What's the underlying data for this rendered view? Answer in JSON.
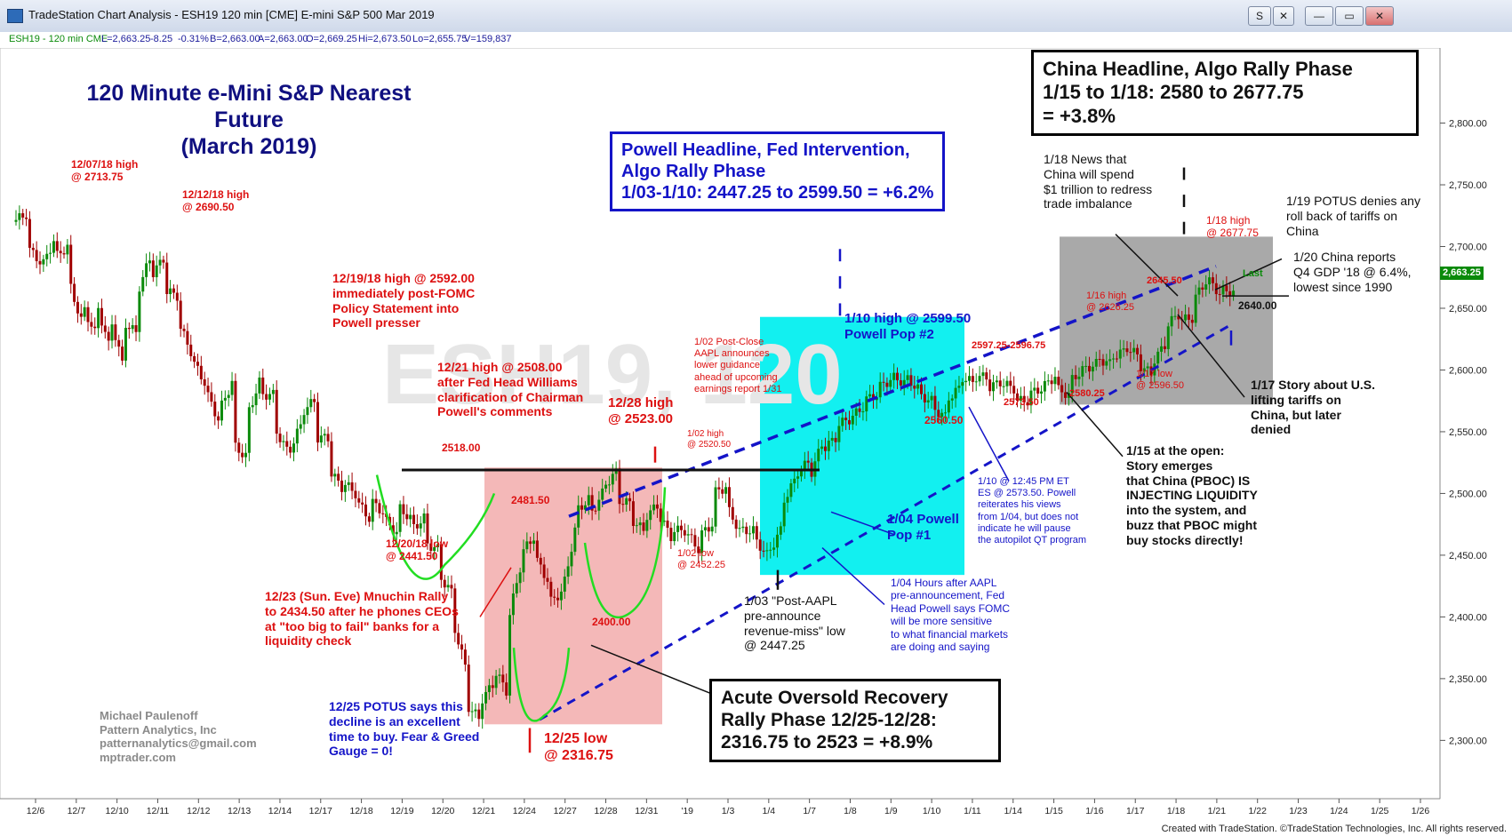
{
  "window": {
    "title": "TradeStation Chart Analysis - ESH19 120 min [CME] E-mini S&P 500 Mar 2019",
    "buttons": {
      "s": "S",
      "close_small": "✕",
      "min": "—",
      "max": "▭",
      "close": "✕"
    }
  },
  "info": {
    "symbol": "ESH19 - 120 min  CME",
    "last": "L=2,663.25",
    "chg": "-8.25",
    "pct": "-0.31%",
    "bid": "B=2,663.00",
    "ask": "A=2,663.00",
    "open": "O=2,669.25",
    "high": "Hi=2,673.50",
    "low": "Lo=2,655.75",
    "vol": "V=159,837"
  },
  "chart_data": {
    "type": "candlestick",
    "title": "120 Minute e-Mini S&P Nearest Future\n(March 2019)",
    "watermark": "ESH19, 120",
    "ylim": [
      2265,
      2845
    ],
    "yticks": [
      "2,800.00",
      "2,750.00",
      "2,700.00",
      "2,650.00",
      "2,600.00",
      "2,550.00",
      "2,500.00",
      "2,450.00",
      "2,400.00",
      "2,350.00",
      "2,300.00"
    ],
    "ytick_values": [
      2800,
      2750,
      2700,
      2650,
      2600,
      2550,
      2500,
      2450,
      2400,
      2350,
      2300
    ],
    "xticks": [
      "12/6",
      "12/7",
      "12/10",
      "12/11",
      "12/12",
      "12/13",
      "12/14",
      "12/17",
      "12/18",
      "12/19",
      "12/20",
      "12/21",
      "12/24",
      "12/27",
      "12/28",
      "12/31",
      "'19",
      "1/3",
      "1/4",
      "1/7",
      "1/8",
      "1/9",
      "1/10",
      "1/11",
      "1/14",
      "1/15",
      "1/16",
      "1/17",
      "1/18",
      "1/21",
      "1/22",
      "1/23",
      "1/24",
      "1/25",
      "1/26"
    ],
    "last_price": "2,663.25",
    "last_label": "Last",
    "price_path": [
      [
        2720,
        2726
      ],
      [
        2700,
        2688
      ],
      [
        2680,
        2705
      ],
      [
        2690,
        2700
      ],
      [
        2675,
        2640
      ],
      [
        2655,
        2630
      ],
      [
        2660,
        2620
      ],
      [
        2650,
        2605
      ],
      [
        2640,
        2630
      ],
      [
        2660,
        2690
      ],
      [
        2675,
        2690
      ],
      [
        2665,
        2660
      ],
      [
        2640,
        2615
      ],
      [
        2610,
        2590
      ],
      [
        2585,
        2560
      ],
      [
        2565,
        2590
      ],
      [
        2540,
        2530
      ],
      [
        2560,
        2590
      ],
      [
        2580,
        2580
      ],
      [
        2555,
        2535
      ],
      [
        2530,
        2555
      ],
      [
        2565,
        2575
      ],
      [
        2545,
        2545
      ],
      [
        2520,
        2505
      ],
      [
        2510,
        2500
      ],
      [
        2495,
        2480
      ],
      [
        2495,
        2485
      ],
      [
        2480,
        2468
      ],
      [
        2490,
        2480
      ],
      [
        2470,
        2480
      ],
      [
        2460,
        2455
      ],
      [
        2435,
        2420
      ],
      [
        2400,
        2360
      ],
      [
        2330,
        2318
      ],
      [
        2330,
        2345
      ],
      [
        2360,
        2340
      ],
      [
        2390,
        2440
      ],
      [
        2450,
        2465
      ],
      [
        2450,
        2430
      ],
      [
        2410,
        2420
      ],
      [
        2415,
        2470
      ],
      [
        2485,
        2495
      ],
      [
        2480,
        2500
      ],
      [
        2505,
        2517
      ],
      [
        2495,
        2492
      ],
      [
        2480,
        2470
      ],
      [
        2480,
        2490
      ],
      [
        2485,
        2465
      ],
      [
        2470,
        2470
      ],
      [
        2470,
        2455
      ],
      [
        2465,
        2475
      ],
      [
        2500,
        2505
      ],
      [
        2490,
        2470
      ],
      [
        2470,
        2470
      ],
      [
        2465,
        2450
      ],
      [
        2450,
        2470
      ],
      [
        2490,
        2510
      ],
      [
        2515,
        2525
      ],
      [
        2510,
        2540
      ],
      [
        2535,
        2545
      ],
      [
        2555,
        2560
      ],
      [
        2560,
        2570
      ],
      [
        2575,
        2580
      ],
      [
        2585,
        2592
      ],
      [
        2595,
        2590
      ],
      [
        2595,
        2585
      ],
      [
        2580,
        2575
      ],
      [
        2570,
        2562
      ],
      [
        2575,
        2585
      ],
      [
        2595,
        2590
      ],
      [
        2595,
        2594
      ],
      [
        2585,
        2590
      ],
      [
        2590,
        2585
      ],
      [
        2575,
        2575
      ],
      [
        2580,
        2585
      ],
      [
        2585,
        2595
      ],
      [
        2585,
        2580
      ],
      [
        2590,
        2600
      ],
      [
        2600,
        2605
      ],
      [
        2610,
        2605
      ],
      [
        2610,
        2615
      ],
      [
        2620,
        2612
      ],
      [
        2605,
        2597
      ],
      [
        2605,
        2620
      ],
      [
        2635,
        2645
      ],
      [
        2640,
        2642
      ],
      [
        2655,
        2672
      ],
      [
        2675,
        2662
      ],
      [
        2665,
        2663
      ]
    ],
    "annotations": {
      "a_1207": "12/07/18 high\n@ 2713.75",
      "a_1212": "12/12/18 high\n@ 2690.50",
      "a_1219": "12/19/18 high @ 2592.00\nimmediately post-FOMC\nPolicy Statement into\nPowell presser",
      "a_1221": "12/21 high @ 2508.00\nafter Fed Head Williams\nclarification of Chairman\nPowell's comments",
      "a_2518": "2518.00",
      "a_1220low": "12/20/18 low\n@ 2441.50",
      "a_mnuchin": "12/23 (Sun. Eve) Mnuchin Rally\nto 2434.50 after he phones CEOs\nat \"too big to fail\" banks for a\nliquidity check",
      "a_2481": "2481.50",
      "a_2400": "2400.00",
      "a_1228": "12/28 high\n@ 2523.00",
      "a_aapl": "1/02 Post-Close\nAAPL announces\nlower guidance\nahead of upcoming\nearnings report 1/31",
      "a_0102high": "1/02 high\n@ 2520.50",
      "a_0102low": "1/02 low\n@ 2452.25",
      "a_1225potus": "12/25 POTUS says this\ndecline is an excellent\ntime to buy. Fear & Greed\nGauge = 0!",
      "a_1225low": "12/25 low\n@ 2316.75",
      "a_0103": "1/03 \"Post-AAPL\npre-announce\nrevenue-miss\" low\n@ 2447.25",
      "a_0104hours": "1/04 Hours after AAPL\npre-announcement, Fed\nHead Powell says FOMC\nwill be more sensitive\nto what financial markets\nare doing and saying",
      "a_pop1": "1/04 Powell\nPop #1",
      "a_0110high": "1/10 high @ 2599.50\nPowell Pop #2",
      "a_0110pm": "1/10 @ 12:45 PM ET\nES @ 2573.50. Powell\nreiterates his views\nfrom 1/04, but does not\nindicate he will pause\nthe autopilot QT program",
      "a_2560": "2560.50",
      "a_range": "2597.25-2596.75",
      "a_2573": "2573.50",
      "a_2580": "2580.25",
      "a_0116": "1/16 high\n@ 2626.25",
      "a_2645": "2645.50",
      "a_0117low": "1/17 low\n@ 2596.50",
      "a_0118high": "1/18 high\n@ 2677.75",
      "a_2640": "2640.00",
      "a_0118news": "1/18 News that\nChina will spend\n$1 trillion to redress\ntrade imbalance",
      "a_0119": "1/19 POTUS denies any\nroll back of tariffs on\nChina",
      "a_0120": "1/20 China reports\nQ4 GDP '18 @ 6.4%,\nlowest since 1990",
      "a_0117story": "1/17 Story about U.S.\nlifting tariffs on\nChina, but later\ndenied",
      "a_0115": "1/15 at the open:\nStory emerges\nthat China (PBOC) IS\nINJECTING LIQUIDITY\ninto the system, and\nbuzz that PBOC might\nbuy stocks directly!",
      "box_powell": "Powell Headline, Fed Intervention,\nAlgo Rally Phase\n1/03-1/10: 2447.25 to 2599.50 = +6.2%",
      "box_china": "China Headline, Algo Rally Phase\n1/15 to 1/18: 2580 to 2677.75\n= +3.8%",
      "box_oversold": "Acute Oversold Recovery\nRally Phase 12/25-12/28:\n2316.75 to 2523 = +8.9%",
      "credit": "Michael Paulenoff\nPattern Analytics, Inc\npatternanalytics@gmail.com\nmptrader.com"
    }
  },
  "colors": {
    "up": "#0a8a0a",
    "down": "#a00000",
    "red_zone": "#f4b8b8",
    "cyan_zone": "#12f0f0",
    "gray_zone": "#a9a9a9"
  },
  "footer": "Created with TradeStation. ©TradeStation Technologies, Inc. All rights reserved."
}
